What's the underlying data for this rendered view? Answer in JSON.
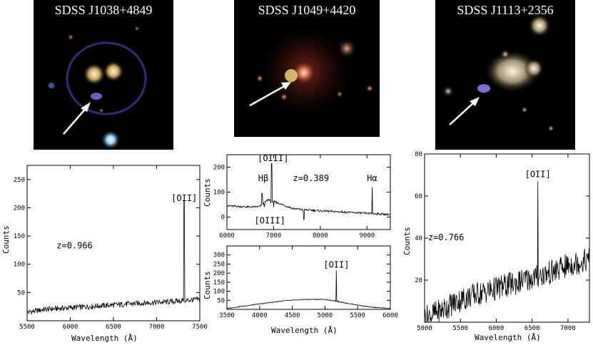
{
  "images": [
    {
      "title": "SDSS J1038+4849"
    },
    {
      "title": "SDSS J1049+4420"
    },
    {
      "title": "SDSS J1113+2356"
    }
  ],
  "chart_data": [
    {
      "type": "line",
      "xlabel": "Wavelength (Å)",
      "ylabel": "Counts",
      "xlim": [
        5500,
        7500
      ],
      "ylim": [
        0,
        275
      ],
      "xticks": [
        5500,
        6000,
        6500,
        7000,
        7500
      ],
      "yticks": [
        50,
        100,
        150,
        200,
        250
      ],
      "annotations": [
        {
          "text": "z=0.966",
          "x": 6050,
          "y": 128
        },
        {
          "text": "[OII]",
          "x": 7320,
          "y": 212
        }
      ],
      "series": [
        {
          "x": [
            5500,
            5700,
            5900,
            6100,
            6300,
            6500,
            6700,
            6900,
            7100,
            7300,
            7320,
            7340,
            7500
          ],
          "y": [
            15,
            20,
            22,
            24,
            26,
            28,
            30,
            32,
            33,
            35,
            212,
            35,
            38
          ]
        }
      ]
    },
    {
      "type": "line",
      "xlabel": "",
      "ylabel": "Counts",
      "xlim": [
        6000,
        9500
      ],
      "ylim": [
        -50,
        250
      ],
      "xticks": [
        6000,
        7000,
        8000,
        9000
      ],
      "yticks": [
        0,
        100,
        200
      ],
      "annotations": [
        {
          "text": "[OIII]",
          "x": 6990,
          "y": 225
        },
        {
          "text": "Hβ",
          "x": 6780,
          "y": 145
        },
        {
          "text": "z=0.389",
          "x": 7800,
          "y": 145
        },
        {
          "text": "Hα",
          "x": 9110,
          "y": 145
        },
        {
          "text": "[OIII]",
          "x": 6920,
          "y": -25
        }
      ],
      "series": [
        {
          "x": [
            6000,
            6500,
            6700,
            6752,
            6800,
            6890,
            6950,
            6960,
            7000,
            7400,
            7600,
            7650,
            8000,
            8500,
            9000,
            9110,
            9150,
            9500
          ],
          "y": [
            45,
            40,
            42,
            95,
            42,
            70,
            55,
            215,
            40,
            35,
            30,
            -10,
            25,
            20,
            15,
            120,
            15,
            10
          ]
        }
      ]
    },
    {
      "type": "line",
      "xlabel": "Wavelength (Å)",
      "ylabel": "Counts",
      "xlim": [
        3500,
        6000
      ],
      "ylim": [
        0,
        350
      ],
      "xticks": [
        3500,
        4000,
        4500,
        5000,
        5500,
        6000
      ],
      "yticks": [
        50,
        100,
        150,
        200,
        250,
        300
      ],
      "annotations": [
        {
          "text": "[OII]",
          "x": 5175,
          "y": 230
        }
      ],
      "series": [
        {
          "x": [
            3500,
            3800,
            4100,
            4400,
            4700,
            5000,
            5150,
            5175,
            5200,
            5400,
            5700,
            6000
          ],
          "y": [
            5,
            20,
            35,
            48,
            55,
            55,
            50,
            215,
            48,
            30,
            12,
            5
          ]
        }
      ]
    },
    {
      "type": "line",
      "xlabel": "Wavelength (Å)",
      "ylabel": "Counts",
      "xlim": [
        5000,
        7300
      ],
      "ylim": [
        0,
        80
      ],
      "xticks": [
        5000,
        5500,
        6000,
        6500,
        7000
      ],
      "yticks": [
        20,
        40,
        60,
        80
      ],
      "annotations": [
        {
          "text": "z=0.766",
          "x": 5300,
          "y": 39
        },
        {
          "text": "[OII]",
          "x": 6580,
          "y": 69
        }
      ],
      "series": [
        {
          "x": [
            5000,
            5200,
            5400,
            5600,
            5800,
            6000,
            6200,
            6400,
            6560,
            6580,
            6600,
            6800,
            7000,
            7300
          ],
          "y": [
            2,
            5,
            9,
            12,
            14,
            16,
            18,
            20,
            21,
            67,
            21,
            24,
            27,
            30
          ]
        }
      ]
    }
  ]
}
